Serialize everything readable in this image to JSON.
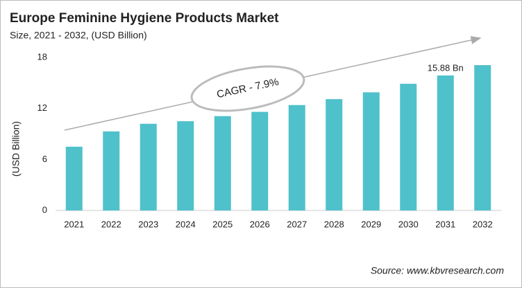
{
  "chart_data": {
    "type": "bar",
    "title": "Europe Feminine Hygiene Products Market",
    "subtitle": "Size, 2021 - 2032, (USD Billion)",
    "y_label": "(USD Billion)",
    "annotation": "CAGR - 7.9%",
    "source": "Source: www.kbvresearch.com",
    "categories": [
      "2021",
      "2022",
      "2023",
      "2024",
      "2025",
      "2026",
      "2027",
      "2028",
      "2029",
      "2030",
      "2031",
      "2032"
    ],
    "values": [
      7.5,
      9.3,
      10.2,
      10.5,
      11.1,
      11.6,
      12.4,
      13.1,
      13.9,
      14.9,
      15.88,
      17.1
    ],
    "value_labels": [
      null,
      null,
      null,
      null,
      null,
      null,
      null,
      null,
      null,
      null,
      "15.88 Bn",
      null
    ],
    "color": "#4fc1cb",
    "ylim": [
      0,
      18
    ],
    "yticks": [
      0,
      6,
      12,
      18
    ],
    "grid": false
  }
}
